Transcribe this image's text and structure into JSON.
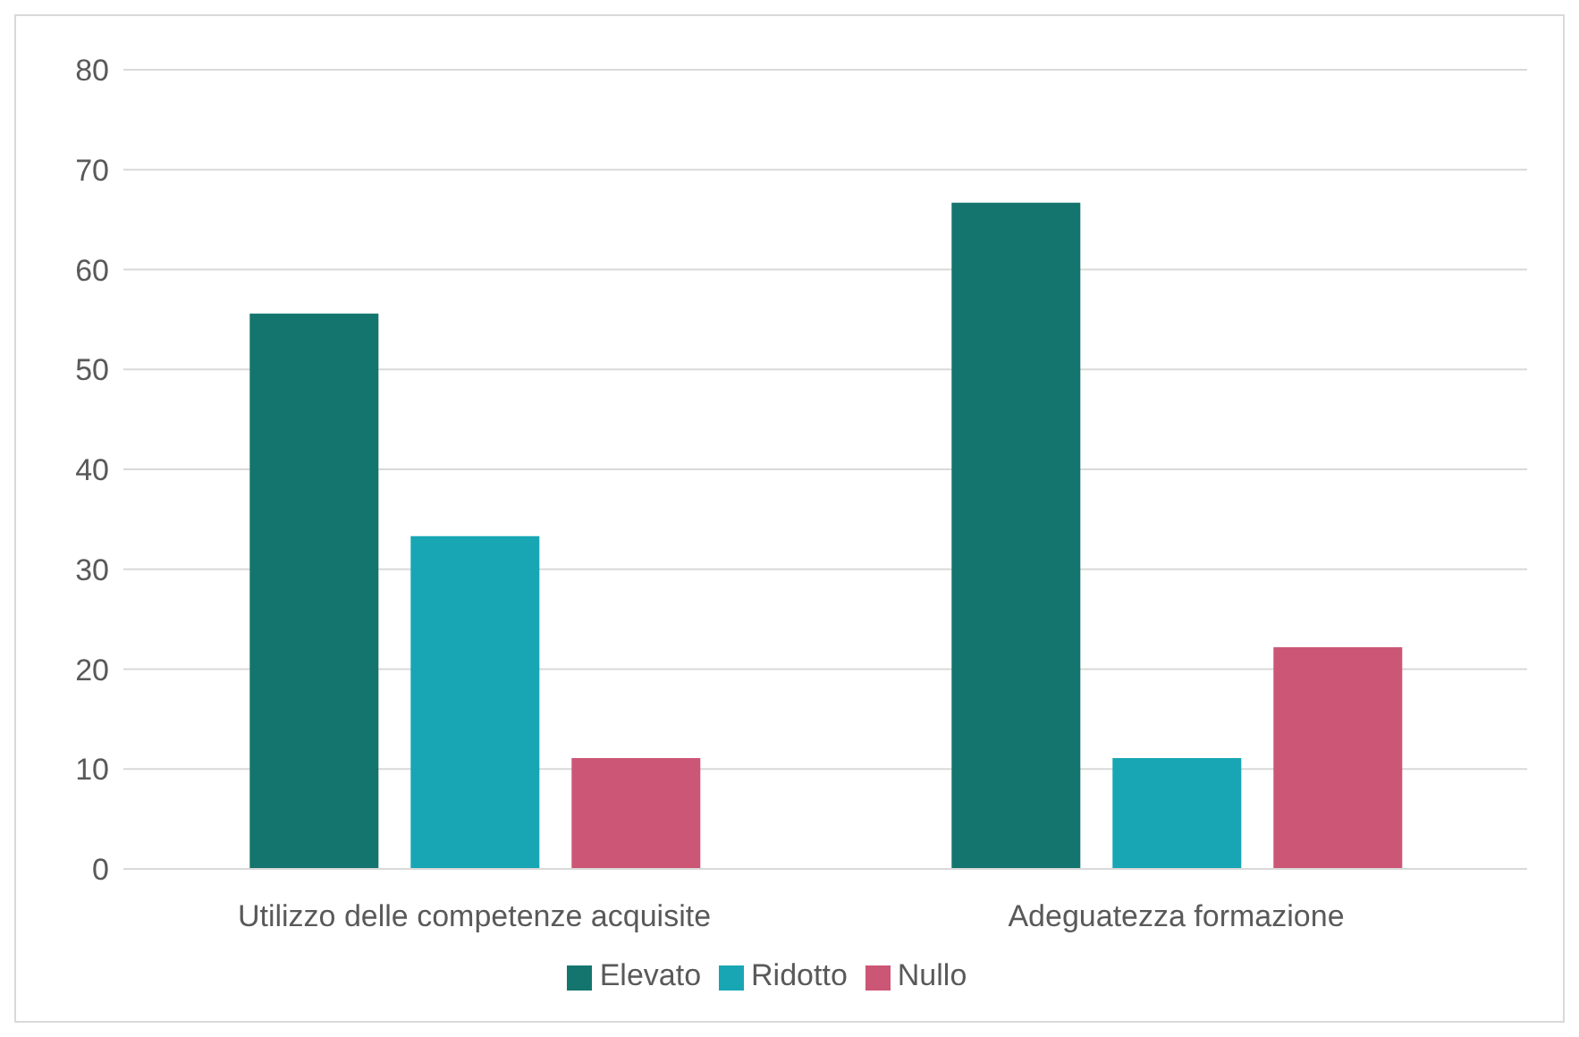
{
  "chart_data": {
    "type": "bar",
    "categories": [
      "Utilizzo delle competenze acquisite",
      "Adeguatezza formazione"
    ],
    "series": [
      {
        "name": "Elevato",
        "color": "#14756e",
        "values": [
          55.6,
          66.7
        ]
      },
      {
        "name": "Ridotto",
        "color": "#18a6b4",
        "values": [
          33.3,
          11.1
        ]
      },
      {
        "name": "Nullo",
        "color": "#cc5675",
        "values": [
          11.1,
          22.2
        ]
      }
    ],
    "ylim": [
      0,
      80
    ],
    "yticks": [
      0,
      10,
      20,
      30,
      40,
      50,
      60,
      70,
      80
    ],
    "grid": "y",
    "legend": "bottom"
  }
}
